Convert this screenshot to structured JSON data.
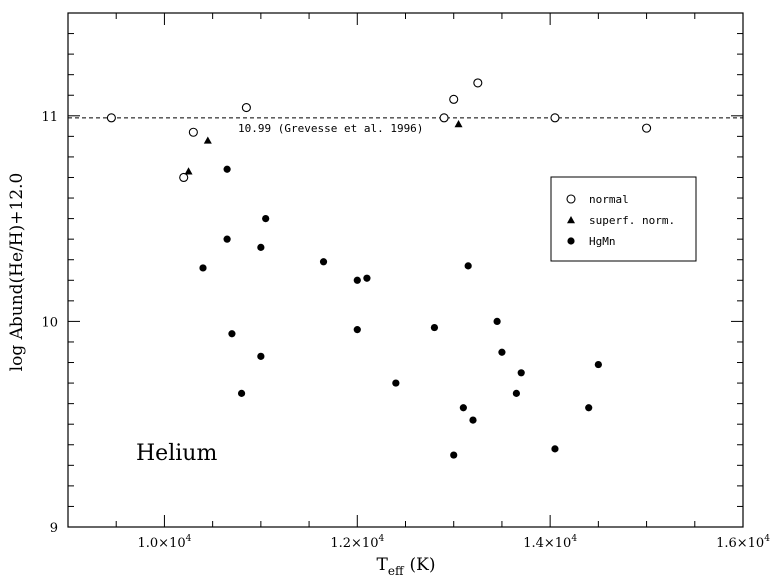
{
  "chart_data": {
    "type": "scatter",
    "title": "",
    "xlabel_main": "T",
    "xlabel_sub": "eff",
    "xlabel_unit": "(K)",
    "ylabel": "log Abund(He/H)+12.0",
    "xlim": [
      9000,
      16000
    ],
    "ylim": [
      9.0,
      11.5
    ],
    "x_ticks": [
      {
        "value": 10000,
        "mantissa": "1.0×10",
        "exp": "4"
      },
      {
        "value": 12000,
        "mantissa": "1.2×10",
        "exp": "4"
      },
      {
        "value": 14000,
        "mantissa": "1.4×10",
        "exp": "4"
      },
      {
        "value": 16000,
        "mantissa": "1.6×10",
        "exp": "4"
      }
    ],
    "y_ticks": [
      {
        "value": 9,
        "label": "9"
      },
      {
        "value": 10,
        "label": "10"
      },
      {
        "value": 11,
        "label": "11"
      }
    ],
    "reference_line": {
      "y": 10.99,
      "label": "10.99 (Grevesse et al. 1996)"
    },
    "panel_label": "Helium",
    "legend_position": "right",
    "series": [
      {
        "name": "normal",
        "marker": "open-circle",
        "points": [
          [
            9450,
            10.99
          ],
          [
            10200,
            10.7
          ],
          [
            10300,
            10.92
          ],
          [
            10850,
            11.04
          ],
          [
            12900,
            10.99
          ],
          [
            13000,
            11.08
          ],
          [
            13250,
            11.16
          ],
          [
            14050,
            10.99
          ],
          [
            15000,
            10.94
          ]
        ]
      },
      {
        "name": "superf. norm.",
        "marker": "filled-triangle",
        "points": [
          [
            10250,
            10.73
          ],
          [
            10450,
            10.88
          ],
          [
            13050,
            10.96
          ]
        ]
      },
      {
        "name": "HgMn",
        "marker": "filled-circle",
        "points": [
          [
            10400,
            10.26
          ],
          [
            10650,
            10.74
          ],
          [
            10650,
            10.4
          ],
          [
            10700,
            9.94
          ],
          [
            10800,
            9.65
          ],
          [
            11000,
            10.36
          ],
          [
            11000,
            9.83
          ],
          [
            11050,
            10.5
          ],
          [
            11650,
            10.29
          ],
          [
            12000,
            10.2
          ],
          [
            12000,
            9.96
          ],
          [
            12100,
            10.21
          ],
          [
            12400,
            9.7
          ],
          [
            12800,
            9.97
          ],
          [
            13000,
            9.35
          ],
          [
            13100,
            9.58
          ],
          [
            13150,
            10.27
          ],
          [
            13200,
            9.52
          ],
          [
            13450,
            10.0
          ],
          [
            13500,
            9.85
          ],
          [
            13650,
            9.65
          ],
          [
            13700,
            9.75
          ],
          [
            14050,
            9.38
          ],
          [
            14400,
            9.58
          ],
          [
            14500,
            9.79
          ]
        ]
      }
    ]
  }
}
